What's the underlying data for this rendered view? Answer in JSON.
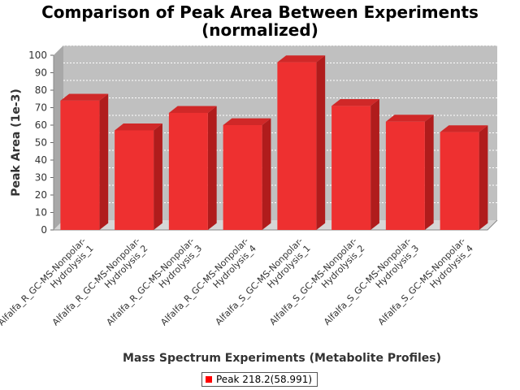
{
  "chart_data": {
    "type": "bar",
    "title": "Comparison of Peak Area Between Experiments",
    "subtitle": "(normalized)",
    "xlabel": "Mass Spectrum Experiments (Metabolite Profiles)",
    "ylabel": "Peak Area (1e-3)",
    "ylim": [
      0,
      100
    ],
    "yticks": [
      0,
      10,
      20,
      30,
      40,
      50,
      60,
      70,
      80,
      90,
      100
    ],
    "grid": true,
    "legend_position": "bottom",
    "categories": [
      [
        "Alfalfa_R_GC-MS-Nonpolar-",
        "Hydrolysis_1"
      ],
      [
        "Alfalfa_R_GC-MS-Nonpolar-",
        "Hydrolysis_2"
      ],
      [
        "Alfalfa_R_GC-MS-Nonpolar-",
        "Hydrolysis_3"
      ],
      [
        "Alfalfa_R_GC-MS-Nonpolar-",
        "Hydrolysis_4"
      ],
      [
        "Alfalfa_S_GC-MS-Nonpolar-",
        "Hydrolysis_1"
      ],
      [
        "Alfalfa_S_GC-MS-Nonpolar-",
        "Hydrolysis_2"
      ],
      [
        "Alfalfa_S_GC-MS-Nonpolar-",
        "Hydrolysis_3"
      ],
      [
        "Alfalfa_S_GC-MS-Nonpolar-",
        "Hydrolysis_4"
      ]
    ],
    "series": [
      {
        "name": "Peak 218.2(58.991)",
        "color": "#ff0000",
        "values": [
          74,
          57,
          67,
          60,
          96,
          71,
          62,
          56
        ]
      }
    ],
    "colors": {
      "plot_background": "#c0c0c0",
      "plot_wall": "#a8a8a8",
      "bar_front": "#ee3030",
      "bar_top": "#d02828",
      "bar_side": "#b01c1c"
    }
  }
}
